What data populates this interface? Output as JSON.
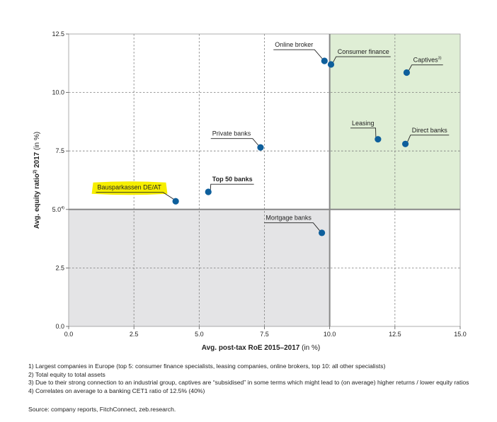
{
  "chart_data": {
    "type": "scatter",
    "xlabel": "Avg. post-tax RoE 2015–2017 (in %)",
    "ylabel_parts": [
      "Avg. equity ratio",
      "2)",
      " 2017 (in %)"
    ],
    "xlim": [
      0,
      15
    ],
    "ylim": [
      0,
      12.5
    ],
    "x_ticks": [
      0,
      2.5,
      5,
      7.5,
      10,
      12.5,
      15
    ],
    "x_tick_labels": [
      "0.0",
      "2.5",
      "5.0",
      "7.5",
      "10.0",
      "12.5",
      "15.0"
    ],
    "y_ticks": [
      0,
      2.5,
      5,
      7.5,
      10,
      12.5
    ],
    "y_tick_labels": [
      "0.0",
      "2.5",
      "5.0",
      "7.5",
      "10.0",
      "12.5"
    ],
    "y_tick_superscripts": [
      "",
      "",
      "4)",
      "",
      "",
      ""
    ],
    "grid": "dashed",
    "threshold_x": 10,
    "threshold_y": 5,
    "shaded_quadrants": [
      {
        "name": "high-roe-high-equity",
        "x": [
          10,
          15
        ],
        "y": [
          5,
          12.5
        ],
        "color": "#dfeed5"
      },
      {
        "name": "low-roe-low-equity",
        "x": [
          0,
          10
        ],
        "y": [
          0,
          5
        ],
        "color": "#e4e4e6"
      }
    ],
    "point_color": "#0e5f9c",
    "highlight_color": "#f6ee00",
    "points": [
      {
        "label": "Online broker",
        "sup": "",
        "x": 9.8,
        "y": 11.35,
        "bold": false,
        "highlight": false,
        "label_side": "left",
        "label_x": 7.9,
        "label_y": 11.95
      },
      {
        "label": "Consumer finance",
        "sup": "",
        "x": 10.05,
        "y": 11.2,
        "bold": false,
        "highlight": false,
        "label_side": "right",
        "label_x": 10.3,
        "label_y": 11.65
      },
      {
        "label": "Captives",
        "sup": "3)",
        "x": 12.95,
        "y": 10.85,
        "bold": false,
        "highlight": false,
        "label_side": "right",
        "label_x": 13.2,
        "label_y": 11.3
      },
      {
        "label": "Leasing",
        "sup": "",
        "x": 11.85,
        "y": 8.0,
        "bold": false,
        "highlight": false,
        "label_side": "left",
        "label_x": 10.85,
        "label_y": 8.6
      },
      {
        "label": "Direct banks",
        "sup": "",
        "x": 12.9,
        "y": 7.8,
        "bold": false,
        "highlight": false,
        "label_side": "right",
        "label_x": 13.15,
        "label_y": 8.3
      },
      {
        "label": "Private banks",
        "sup": "",
        "x": 7.35,
        "y": 7.65,
        "bold": false,
        "highlight": false,
        "label_side": "left",
        "label_x": 5.5,
        "label_y": 8.15
      },
      {
        "label": "Top 50 banks",
        "sup": "",
        "x": 5.35,
        "y": 5.75,
        "bold": true,
        "highlight": false,
        "label_side": "right",
        "label_x": 5.5,
        "label_y": 6.2
      },
      {
        "label": "Bausparkassen DE/AT",
        "sup": "",
        "x": 4.1,
        "y": 5.35,
        "bold": false,
        "highlight": true,
        "label_side": "left",
        "label_x": 1.1,
        "label_y": 5.85
      },
      {
        "label": "Mortgage banks",
        "sup": "",
        "x": 9.7,
        "y": 4.0,
        "bold": false,
        "highlight": false,
        "label_side": "left",
        "label_x": 7.55,
        "label_y": 4.55
      }
    ]
  },
  "footnotes": [
    "1) Largest companies in Europe (top 5: consumer finance specialists, leasing companies, online brokers, top 10: all other specialists)",
    "2) Total equity to total assets",
    "3) Due to their strong connection to an industrial group, captives are “subsidised” in some terms which might lead to (on average) higher returns / lower equity ratios",
    "4) Correlates on average to a banking CET1 ratio of 12.5% (40%)"
  ],
  "source": "Source: company reports, FitchConnect, zeb.research."
}
